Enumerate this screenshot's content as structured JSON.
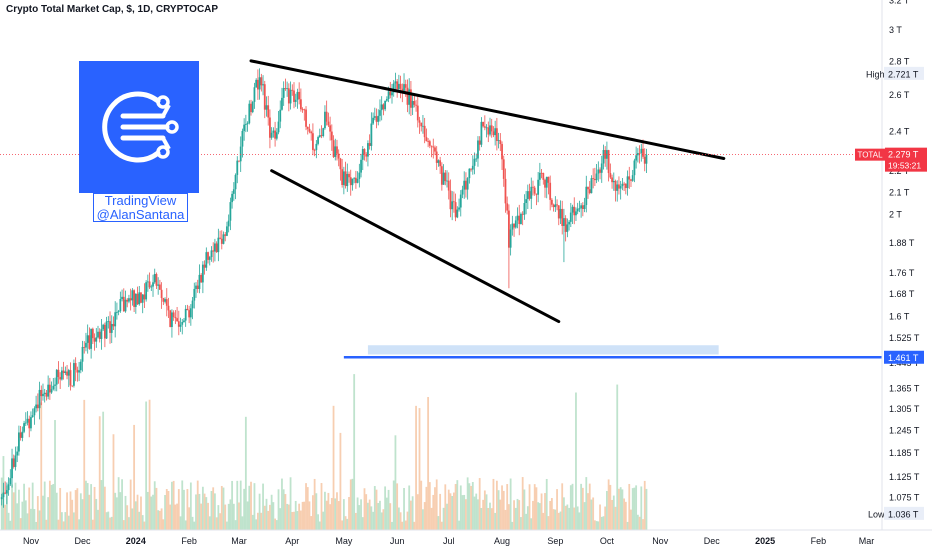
{
  "header": {
    "title": "Crypto Total Market Cap, $, 1D, CRYPTOCAP"
  },
  "watermark": {
    "line1": "TradingView",
    "line2": "@AlanSantana",
    "icon": "network-circle-logo-icon"
  },
  "colors": {
    "up": "#26a69a",
    "down": "#ef5350",
    "accent": "#2962ff",
    "price_line": "#f23645",
    "zone": "#cfe2f8"
  },
  "chart_data": {
    "type": "candlestick",
    "scale": "log",
    "ylim": [
      1.0,
      3.2
    ],
    "y_ticks": [
      "3.2 T",
      "3 T",
      "2.8 T",
      "2.6 T",
      "2.4 T",
      "2.2 T",
      "2.1 T",
      "2 T",
      "1.88 T",
      "1.76 T",
      "1.68 T",
      "1.6 T",
      "1.525 T",
      "1.445 T",
      "1.365 T",
      "1.305 T",
      "1.245 T",
      "1.185 T",
      "1.125 T",
      "1.075 T",
      "1.036 T"
    ],
    "x_ticks": [
      "Nov",
      "Dec",
      "2024",
      "Feb",
      "Mar",
      "Apr",
      "May",
      "Jun",
      "Jul",
      "Aug",
      "Sep",
      "Oct",
      "Nov",
      "Dec",
      "2025",
      "Feb",
      "Mar"
    ],
    "x_tick_dates": [
      "2023-11-01",
      "2023-12-01",
      "2024-01-01",
      "2024-02-01",
      "2024-03-01",
      "2024-04-01",
      "2024-05-01",
      "2024-06-01",
      "2024-07-01",
      "2024-08-01",
      "2024-09-01",
      "2024-10-01",
      "2024-11-01",
      "2024-12-01",
      "2025-01-01",
      "2025-02-01",
      "2025-03-01"
    ],
    "x_range": [
      "2023-10-14",
      "2025-03-10"
    ],
    "price_path": [
      [
        "2023-10-15",
        1.07
      ],
      [
        "2023-10-25",
        1.22
      ],
      [
        "2023-11-05",
        1.33
      ],
      [
        "2023-11-15",
        1.39
      ],
      [
        "2023-11-25",
        1.4
      ],
      [
        "2023-12-05",
        1.52
      ],
      [
        "2023-12-15",
        1.56
      ],
      [
        "2023-12-25",
        1.64
      ],
      [
        "2024-01-05",
        1.68
      ],
      [
        "2024-01-12",
        1.74
      ],
      [
        "2024-01-22",
        1.58
      ],
      [
        "2024-02-01",
        1.62
      ],
      [
        "2024-02-12",
        1.84
      ],
      [
        "2024-02-22",
        1.92
      ],
      [
        "2024-03-05",
        2.45
      ],
      [
        "2024-03-13",
        2.72
      ],
      [
        "2024-03-20",
        2.35
      ],
      [
        "2024-03-28",
        2.62
      ],
      [
        "2024-04-05",
        2.55
      ],
      [
        "2024-04-13",
        2.32
      ],
      [
        "2024-04-20",
        2.45
      ],
      [
        "2024-05-01",
        2.15
      ],
      [
        "2024-05-10",
        2.2
      ],
      [
        "2024-05-20",
        2.5
      ],
      [
        "2024-05-27",
        2.62
      ],
      [
        "2024-06-05",
        2.63
      ],
      [
        "2024-06-15",
        2.45
      ],
      [
        "2024-06-24",
        2.25
      ],
      [
        "2024-07-05",
        2.0
      ],
      [
        "2024-07-15",
        2.25
      ],
      [
        "2024-07-22",
        2.46
      ],
      [
        "2024-08-01",
        2.3
      ],
      [
        "2024-08-05",
        1.88
      ],
      [
        "2024-08-14",
        2.05
      ],
      [
        "2024-08-25",
        2.18
      ],
      [
        "2024-09-06",
        1.95
      ],
      [
        "2024-09-15",
        2.02
      ],
      [
        "2024-09-25",
        2.2
      ],
      [
        "2024-09-30",
        2.3
      ],
      [
        "2024-10-05",
        2.12
      ],
      [
        "2024-10-12",
        2.12
      ],
      [
        "2024-10-20",
        2.3
      ],
      [
        "2024-10-24",
        2.279
      ]
    ],
    "wicks": [
      [
        "2024-03-14",
        2.721,
        "high"
      ],
      [
        "2024-08-05",
        1.7,
        "low"
      ],
      [
        "2024-09-06",
        1.8,
        "low"
      ]
    ],
    "lines": [
      {
        "name": "upper-trendline",
        "from": [
          "2024-03-08",
          2.8
        ],
        "to": [
          "2024-12-08",
          2.26
        ]
      },
      {
        "name": "lower-trendline",
        "from": [
          "2024-03-20",
          2.2
        ],
        "to": [
          "2024-09-03",
          1.58
        ]
      }
    ],
    "support_line": {
      "value": 1.461,
      "from": "2024-05-01"
    },
    "zone": {
      "from_date": "2024-05-15",
      "to_date": "2024-12-05",
      "low": 1.47,
      "high": 1.5
    },
    "high": {
      "label": "High",
      "value": "2.721 T"
    },
    "low": {
      "label": "Low",
      "value": "1.036 T"
    },
    "current": {
      "symbol": "TOTAL",
      "value": "2.279 T",
      "countdown": "19:53:21",
      "raw": 2.279
    },
    "support_label": "1.461 T"
  }
}
